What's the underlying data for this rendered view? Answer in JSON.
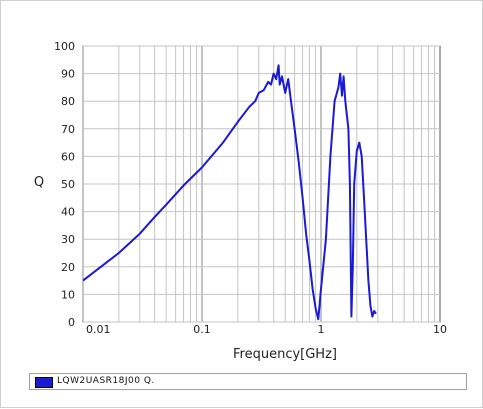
{
  "chart_data": {
    "type": "line",
    "title": "",
    "xlabel": "Frequency[GHz]",
    "ylabel": "Q",
    "x_scale": "log",
    "xlim": [
      0.01,
      10
    ],
    "ylim": [
      0,
      100
    ],
    "x_ticks": [
      "0.01",
      "0.1",
      "1",
      "10"
    ],
    "y_ticks": [
      "0",
      "10",
      "20",
      "30",
      "40",
      "50",
      "60",
      "70",
      "80",
      "90",
      "100"
    ],
    "grid": true,
    "legend_position": "bottom",
    "series": [
      {
        "name": "LQW2UASR18J00 Q.",
        "color": "#1a1ad6",
        "points": [
          [
            0.01,
            15
          ],
          [
            0.02,
            25
          ],
          [
            0.03,
            32
          ],
          [
            0.04,
            38
          ],
          [
            0.05,
            42.5
          ],
          [
            0.07,
            49.5
          ],
          [
            0.1,
            56
          ],
          [
            0.15,
            65
          ],
          [
            0.2,
            72.5
          ],
          [
            0.25,
            78
          ],
          [
            0.28,
            80
          ],
          [
            0.3,
            83
          ],
          [
            0.33,
            84
          ],
          [
            0.36,
            87
          ],
          [
            0.38,
            86
          ],
          [
            0.4,
            90
          ],
          [
            0.42,
            88
          ],
          [
            0.44,
            93
          ],
          [
            0.45,
            86
          ],
          [
            0.47,
            89
          ],
          [
            0.5,
            83
          ],
          [
            0.53,
            88
          ],
          [
            0.56,
            80
          ],
          [
            0.6,
            70
          ],
          [
            0.65,
            58
          ],
          [
            0.7,
            45
          ],
          [
            0.75,
            32
          ],
          [
            0.8,
            22
          ],
          [
            0.85,
            12
          ],
          [
            0.9,
            5
          ],
          [
            0.95,
            1
          ],
          [
            1.0,
            12
          ],
          [
            1.1,
            30
          ],
          [
            1.2,
            60
          ],
          [
            1.3,
            80
          ],
          [
            1.4,
            85
          ],
          [
            1.45,
            90
          ],
          [
            1.5,
            82
          ],
          [
            1.55,
            89
          ],
          [
            1.6,
            80
          ],
          [
            1.7,
            70
          ],
          [
            1.75,
            50
          ],
          [
            1.8,
            2
          ],
          [
            1.85,
            20
          ],
          [
            1.9,
            50
          ],
          [
            2.0,
            62
          ],
          [
            2.1,
            65
          ],
          [
            2.2,
            60
          ],
          [
            2.3,
            45
          ],
          [
            2.4,
            30
          ],
          [
            2.5,
            15
          ],
          [
            2.6,
            6
          ],
          [
            2.7,
            2
          ],
          [
            2.8,
            4
          ],
          [
            2.9,
            3
          ]
        ]
      }
    ]
  }
}
